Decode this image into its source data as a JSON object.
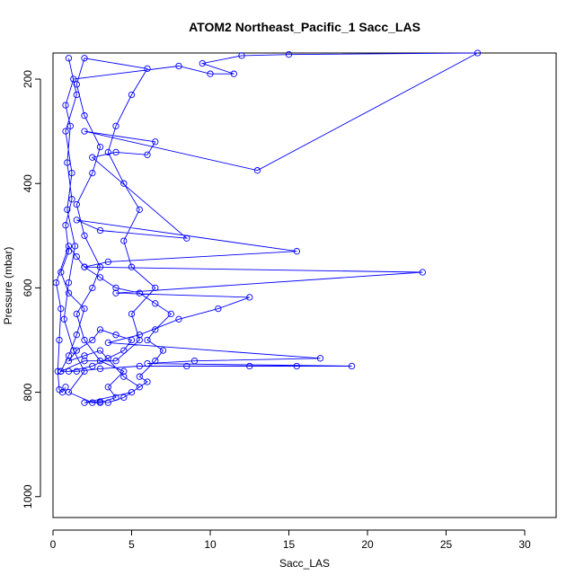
{
  "chart_data": {
    "type": "scatter",
    "title": "ATOM2 Northeast_Pacific_1 Sacc_LAS",
    "xlabel": "Sacc_LAS",
    "ylabel": "Pressure (mbar)",
    "xlim": [
      0,
      32
    ],
    "ylim": [
      1040,
      150
    ],
    "y_inverted": true,
    "grid": false,
    "legend": "none",
    "mode": "lines+markers",
    "color": "#0000ff",
    "x_ticks": [
      0,
      5,
      10,
      15,
      20,
      25,
      30
    ],
    "y_ticks": [
      200,
      400,
      600,
      800,
      1000
    ],
    "series": [
      {
        "points": [
          [
            1.0,
            160
          ],
          [
            1.5,
            230
          ],
          [
            0.8,
            300
          ],
          [
            1.2,
            380
          ],
          [
            0.9,
            450
          ],
          [
            1.4,
            520
          ],
          [
            1.0,
            590
          ],
          [
            0.7,
            660
          ],
          [
            1.3,
            720
          ],
          [
            2.0,
            760
          ],
          [
            1.0,
            800
          ],
          [
            2.5,
            820
          ],
          [
            3.0,
            820
          ],
          [
            4.0,
            810
          ],
          [
            3.5,
            790
          ],
          [
            4.5,
            760
          ],
          [
            3.0,
            740
          ],
          [
            2.0,
            700
          ],
          [
            1.5,
            650
          ],
          [
            2.5,
            600
          ],
          [
            3.0,
            560
          ],
          [
            2.0,
            500
          ],
          [
            1.5,
            440
          ],
          [
            2.5,
            380
          ],
          [
            3.0,
            330
          ],
          [
            2.0,
            270
          ],
          [
            1.5,
            210
          ],
          [
            2.0,
            160
          ],
          [
            6.0,
            180
          ],
          [
            5.0,
            230
          ],
          [
            4.0,
            290
          ],
          [
            3.5,
            340
          ],
          [
            4.5,
            400
          ],
          [
            5.5,
            450
          ],
          [
            4.5,
            510
          ],
          [
            5.0,
            560
          ],
          [
            6.5,
            600
          ],
          [
            5.0,
            650
          ],
          [
            5.5,
            700
          ],
          [
            4.0,
            740
          ],
          [
            2.0,
            740
          ],
          [
            0.5,
            760
          ],
          [
            1.0,
            730
          ],
          [
            1.5,
            690
          ],
          [
            2.0,
            640
          ],
          [
            1.0,
            610
          ],
          [
            0.5,
            570
          ],
          [
            1.0,
            530
          ],
          [
            0.8,
            480
          ],
          [
            1.2,
            430
          ],
          [
            0.9,
            360
          ],
          [
            1.1,
            290
          ],
          [
            0.8,
            250
          ],
          [
            1.3,
            200
          ],
          [
            8.0,
            175
          ],
          [
            10.0,
            190
          ],
          [
            11.5,
            190
          ],
          [
            9.5,
            170
          ],
          [
            12.0,
            155
          ],
          [
            15.0,
            153
          ],
          [
            27.0,
            150
          ],
          [
            13.0,
            375
          ],
          [
            2.0,
            300
          ],
          [
            6.5,
            320
          ],
          [
            6.0,
            345
          ],
          [
            4.0,
            340
          ],
          [
            2.5,
            350
          ],
          [
            8.5,
            505
          ],
          [
            3.0,
            490
          ],
          [
            1.5,
            470
          ],
          [
            15.5,
            530
          ],
          [
            3.5,
            550
          ],
          [
            2.0,
            560
          ],
          [
            23.5,
            570
          ],
          [
            4.0,
            610
          ],
          [
            12.5,
            618
          ],
          [
            10.5,
            640
          ],
          [
            8.0,
            660
          ],
          [
            5.5,
            690
          ],
          [
            3.5,
            705
          ],
          [
            17.0,
            735
          ],
          [
            9.0,
            740
          ],
          [
            6.0,
            745
          ],
          [
            19.0,
            750
          ],
          [
            15.5,
            750
          ],
          [
            12.5,
            750
          ],
          [
            8.5,
            750
          ],
          [
            5.5,
            750
          ],
          [
            3.0,
            755
          ],
          [
            1.5,
            760
          ],
          [
            0.5,
            760
          ],
          [
            1.0,
            760
          ],
          [
            2.5,
            750
          ],
          [
            3.5,
            735
          ],
          [
            4.5,
            720
          ],
          [
            5.0,
            700
          ],
          [
            4.0,
            690
          ],
          [
            3.0,
            680
          ],
          [
            2.5,
            700
          ],
          [
            1.5,
            720
          ],
          [
            1.0,
            740
          ],
          [
            2.0,
            730
          ],
          [
            3.0,
            720
          ],
          [
            4.5,
            770
          ],
          [
            5.5,
            790
          ],
          [
            4.5,
            810
          ],
          [
            3.5,
            820
          ],
          [
            3.0,
            818
          ],
          [
            2.0,
            820
          ],
          [
            5.0,
            800
          ],
          [
            6.0,
            780
          ],
          [
            5.5,
            770
          ],
          [
            6.5,
            740
          ],
          [
            7.0,
            720
          ],
          [
            6.0,
            700
          ],
          [
            6.5,
            680
          ],
          [
            7.5,
            650
          ],
          [
            6.5,
            630
          ],
          [
            5.5,
            610
          ],
          [
            4.0,
            600
          ],
          [
            3.0,
            580
          ],
          [
            2.0,
            560
          ],
          [
            1.5,
            540
          ],
          [
            1.0,
            520
          ],
          [
            0.2,
            590
          ],
          [
            0.5,
            640
          ],
          [
            0.4,
            700
          ],
          [
            0.3,
            760
          ],
          [
            0.4,
            795
          ],
          [
            0.6,
            800
          ],
          [
            0.8,
            790
          ]
        ]
      }
    ]
  }
}
